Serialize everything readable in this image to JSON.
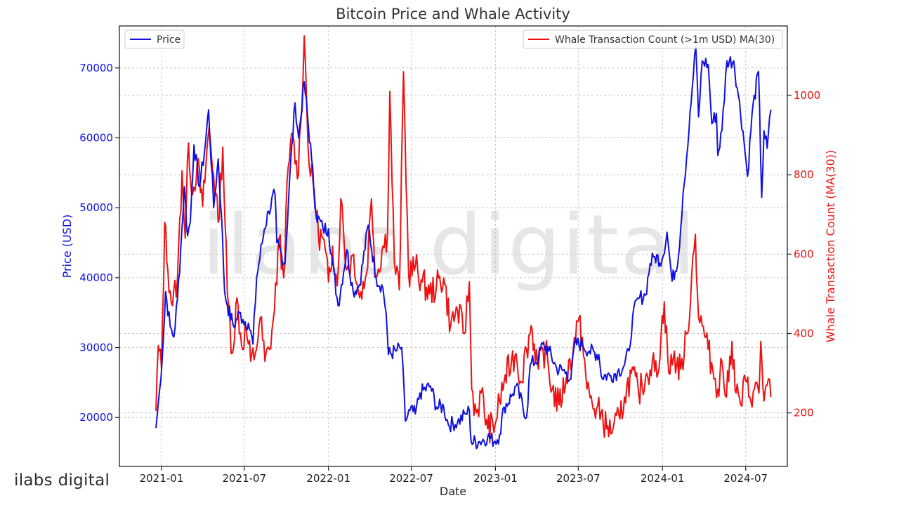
{
  "chart_data": {
    "type": "line",
    "title": "Bitcoin Price and Whale Activity",
    "xlabel": "Date",
    "ylabel_left": "Price (USD)",
    "ylabel_right": "Whale Transaction Count (MA(30))",
    "x_ticks": [
      "2021-01",
      "2021-07",
      "2022-01",
      "2022-07",
      "2023-01",
      "2023-07",
      "2024-01",
      "2024-07"
    ],
    "y_left_ticks": [
      20000,
      30000,
      40000,
      50000,
      60000,
      70000
    ],
    "y_right_ticks": [
      200,
      400,
      600,
      800,
      1000
    ],
    "xlim": [
      "2020-10-01",
      "2024-09-30"
    ],
    "ylim_left": [
      13000,
      76000
    ],
    "ylim_right": [
      65,
      1175
    ],
    "grid": true,
    "series": [
      {
        "name": "Price",
        "axis": "left",
        "color": "#1010e0",
        "points": [
          [
            "2020-12-20",
            18500
          ],
          [
            "2020-12-28",
            24000
          ],
          [
            "2021-01-05",
            31000
          ],
          [
            "2021-01-10",
            38000
          ],
          [
            "2021-01-20",
            33000
          ],
          [
            "2021-01-28",
            31500
          ],
          [
            "2021-02-05",
            37000
          ],
          [
            "2021-02-12",
            44000
          ],
          [
            "2021-02-20",
            53000
          ],
          [
            "2021-02-27",
            46000
          ],
          [
            "2021-03-05",
            48000
          ],
          [
            "2021-03-13",
            59000
          ],
          [
            "2021-03-25",
            53000
          ],
          [
            "2021-04-05",
            58000
          ],
          [
            "2021-04-14",
            64000
          ],
          [
            "2021-04-25",
            50000
          ],
          [
            "2021-05-05",
            57000
          ],
          [
            "2021-05-12",
            49000
          ],
          [
            "2021-05-19",
            38000
          ],
          [
            "2021-05-25",
            36000
          ],
          [
            "2021-06-08",
            33000
          ],
          [
            "2021-06-20",
            35000
          ],
          [
            "2021-06-28",
            34000
          ],
          [
            "2021-07-10",
            33500
          ],
          [
            "2021-07-20",
            30500
          ],
          [
            "2021-07-28",
            40000
          ],
          [
            "2021-08-14",
            47000
          ],
          [
            "2021-08-23",
            49500
          ],
          [
            "2021-09-06",
            52000
          ],
          [
            "2021-09-10",
            45000
          ],
          [
            "2021-09-28",
            42000
          ],
          [
            "2021-10-08",
            54000
          ],
          [
            "2021-10-20",
            65000
          ],
          [
            "2021-10-28",
            60000
          ],
          [
            "2021-11-09",
            68000
          ],
          [
            "2021-11-25",
            57000
          ],
          [
            "2021-12-05",
            49000
          ],
          [
            "2021-12-20",
            47000
          ],
          [
            "2022-01-01",
            47000
          ],
          [
            "2022-01-10",
            42000
          ],
          [
            "2022-01-22",
            36000
          ],
          [
            "2022-02-10",
            44000
          ],
          [
            "2022-02-24",
            38000
          ],
          [
            "2022-03-10",
            39000
          ],
          [
            "2022-03-29",
            47500
          ],
          [
            "2022-04-15",
            40000
          ],
          [
            "2022-04-30",
            38500
          ],
          [
            "2022-05-07",
            35000
          ],
          [
            "2022-05-12",
            29000
          ],
          [
            "2022-05-28",
            29500
          ],
          [
            "2022-06-10",
            30000
          ],
          [
            "2022-06-18",
            19500
          ],
          [
            "2022-06-28",
            21000
          ],
          [
            "2022-07-10",
            20500
          ],
          [
            "2022-07-20",
            23500
          ],
          [
            "2022-08-12",
            24500
          ],
          [
            "2022-08-25",
            21500
          ],
          [
            "2022-09-10",
            21500
          ],
          [
            "2022-09-20",
            19000
          ],
          [
            "2022-10-10",
            19300
          ],
          [
            "2022-10-28",
            20500
          ],
          [
            "2022-11-05",
            21000
          ],
          [
            "2022-11-09",
            16500
          ],
          [
            "2022-11-25",
            16500
          ],
          [
            "2022-12-15",
            17200
          ],
          [
            "2022-12-31",
            16600
          ],
          [
            "2023-01-10",
            17500
          ],
          [
            "2023-01-20",
            21500
          ],
          [
            "2023-02-05",
            23000
          ],
          [
            "2023-02-15",
            24500
          ],
          [
            "2023-03-10",
            20000
          ],
          [
            "2023-03-18",
            27500
          ],
          [
            "2023-04-05",
            28500
          ],
          [
            "2023-04-14",
            30500
          ],
          [
            "2023-04-28",
            29500
          ],
          [
            "2023-05-15",
            27000
          ],
          [
            "2023-06-05",
            26500
          ],
          [
            "2023-06-15",
            25500
          ],
          [
            "2023-06-23",
            30500
          ],
          [
            "2023-07-10",
            30500
          ],
          [
            "2023-07-25",
            29500
          ],
          [
            "2023-08-15",
            29000
          ],
          [
            "2023-08-20",
            26000
          ],
          [
            "2023-09-10",
            26000
          ],
          [
            "2023-09-25",
            26500
          ],
          [
            "2023-10-10",
            27500
          ],
          [
            "2023-10-20",
            29500
          ],
          [
            "2023-10-28",
            34500
          ],
          [
            "2023-11-10",
            37000
          ],
          [
            "2023-11-25",
            37500
          ],
          [
            "2023-12-05",
            42000
          ],
          [
            "2023-12-15",
            43000
          ],
          [
            "2023-12-31",
            42500
          ],
          [
            "2024-01-11",
            46500
          ],
          [
            "2024-01-22",
            39500
          ],
          [
            "2024-02-05",
            43000
          ],
          [
            "2024-02-15",
            52000
          ],
          [
            "2024-02-28",
            61000
          ],
          [
            "2024-03-06",
            67000
          ],
          [
            "2024-03-14",
            73000
          ],
          [
            "2024-03-20",
            63000
          ],
          [
            "2024-03-28",
            71000
          ],
          [
            "2024-04-10",
            70500
          ],
          [
            "2024-04-18",
            62000
          ],
          [
            "2024-04-28",
            63500
          ],
          [
            "2024-05-01",
            57500
          ],
          [
            "2024-05-10",
            61000
          ],
          [
            "2024-05-21",
            71000
          ],
          [
            "2024-06-05",
            71000
          ],
          [
            "2024-06-15",
            66000
          ],
          [
            "2024-06-25",
            61000
          ],
          [
            "2024-07-05",
            54500
          ],
          [
            "2024-07-15",
            63500
          ],
          [
            "2024-07-29",
            69500
          ],
          [
            "2024-08-05",
            51500
          ],
          [
            "2024-08-10",
            61000
          ],
          [
            "2024-08-17",
            58500
          ],
          [
            "2024-08-25",
            64000
          ]
        ]
      },
      {
        "name": "Whale Transaction Count (>1m USD) MA(30)",
        "axis": "right",
        "color": "#ee1111",
        "points": [
          [
            "2020-12-20",
            205
          ],
          [
            "2020-12-25",
            370
          ],
          [
            "2021-01-01",
            310
          ],
          [
            "2021-01-08",
            680
          ],
          [
            "2021-01-15",
            560
          ],
          [
            "2021-01-25",
            470
          ],
          [
            "2021-02-05",
            540
          ],
          [
            "2021-02-15",
            810
          ],
          [
            "2021-02-22",
            640
          ],
          [
            "2021-03-01",
            880
          ],
          [
            "2021-03-10",
            750
          ],
          [
            "2021-03-20",
            830
          ],
          [
            "2021-04-01",
            720
          ],
          [
            "2021-04-15",
            920
          ],
          [
            "2021-04-25",
            800
          ],
          [
            "2021-05-05",
            680
          ],
          [
            "2021-05-15",
            870
          ],
          [
            "2021-05-25",
            500
          ],
          [
            "2021-06-05",
            350
          ],
          [
            "2021-06-15",
            490
          ],
          [
            "2021-06-25",
            370
          ],
          [
            "2021-07-05",
            410
          ],
          [
            "2021-07-15",
            330
          ],
          [
            "2021-07-25",
            350
          ],
          [
            "2021-08-05",
            440
          ],
          [
            "2021-08-15",
            330
          ],
          [
            "2021-08-25",
            360
          ],
          [
            "2021-09-05",
            460
          ],
          [
            "2021-09-15",
            640
          ],
          [
            "2021-09-25",
            540
          ],
          [
            "2021-10-05",
            820
          ],
          [
            "2021-10-15",
            900
          ],
          [
            "2021-10-25",
            790
          ],
          [
            "2021-11-01",
            920
          ],
          [
            "2021-11-09",
            1150
          ],
          [
            "2021-11-20",
            820
          ],
          [
            "2021-12-01",
            760
          ],
          [
            "2021-12-10",
            650
          ],
          [
            "2021-12-20",
            640
          ],
          [
            "2022-01-01",
            530
          ],
          [
            "2022-01-10",
            620
          ],
          [
            "2022-01-20",
            520
          ],
          [
            "2022-01-28",
            740
          ],
          [
            "2022-02-10",
            560
          ],
          [
            "2022-02-25",
            600
          ],
          [
            "2022-03-10",
            490
          ],
          [
            "2022-03-25",
            550
          ],
          [
            "2022-04-05",
            740
          ],
          [
            "2022-04-15",
            540
          ],
          [
            "2022-04-28",
            610
          ],
          [
            "2022-05-10",
            650
          ],
          [
            "2022-05-15",
            1010
          ],
          [
            "2022-05-25",
            580
          ],
          [
            "2022-06-05",
            510
          ],
          [
            "2022-06-14",
            1060
          ],
          [
            "2022-06-25",
            550
          ],
          [
            "2022-07-10",
            570
          ],
          [
            "2022-07-25",
            530
          ],
          [
            "2022-08-10",
            500
          ],
          [
            "2022-08-25",
            520
          ],
          [
            "2022-09-10",
            540
          ],
          [
            "2022-09-25",
            420
          ],
          [
            "2022-10-10",
            460
          ],
          [
            "2022-10-25",
            400
          ],
          [
            "2022-11-05",
            530
          ],
          [
            "2022-11-10",
            260
          ],
          [
            "2022-11-20",
            200
          ],
          [
            "2022-12-01",
            250
          ],
          [
            "2022-12-15",
            160
          ],
          [
            "2022-12-31",
            170
          ],
          [
            "2023-01-10",
            230
          ],
          [
            "2023-01-20",
            280
          ],
          [
            "2023-02-05",
            330
          ],
          [
            "2023-02-15",
            350
          ],
          [
            "2023-02-25",
            280
          ],
          [
            "2023-03-10",
            360
          ],
          [
            "2023-03-20",
            420
          ],
          [
            "2023-04-05",
            310
          ],
          [
            "2023-04-20",
            360
          ],
          [
            "2023-05-05",
            260
          ],
          [
            "2023-05-20",
            220
          ],
          [
            "2023-06-05",
            290
          ],
          [
            "2023-06-20",
            360
          ],
          [
            "2023-06-30",
            430
          ],
          [
            "2023-07-10",
            390
          ],
          [
            "2023-07-20",
            260
          ],
          [
            "2023-08-05",
            210
          ],
          [
            "2023-08-20",
            200
          ],
          [
            "2023-09-01",
            160
          ],
          [
            "2023-09-15",
            160
          ],
          [
            "2023-09-30",
            185
          ],
          [
            "2023-10-10",
            240
          ],
          [
            "2023-10-25",
            300
          ],
          [
            "2023-11-10",
            250
          ],
          [
            "2023-11-25",
            290
          ],
          [
            "2023-12-10",
            330
          ],
          [
            "2023-12-20",
            290
          ],
          [
            "2024-01-05",
            480
          ],
          [
            "2024-01-15",
            300
          ],
          [
            "2024-01-25",
            340
          ],
          [
            "2024-02-10",
            310
          ],
          [
            "2024-02-25",
            400
          ],
          [
            "2024-03-05",
            550
          ],
          [
            "2024-03-13",
            650
          ],
          [
            "2024-03-20",
            440
          ],
          [
            "2024-03-28",
            420
          ],
          [
            "2024-04-10",
            360
          ],
          [
            "2024-04-20",
            310
          ],
          [
            "2024-05-01",
            260
          ],
          [
            "2024-05-10",
            330
          ],
          [
            "2024-05-20",
            240
          ],
          [
            "2024-06-01",
            380
          ],
          [
            "2024-06-10",
            250
          ],
          [
            "2024-06-20",
            220
          ],
          [
            "2024-07-01",
            280
          ],
          [
            "2024-07-10",
            240
          ],
          [
            "2024-07-20",
            260
          ],
          [
            "2024-07-30",
            250
          ],
          [
            "2024-08-03",
            380
          ],
          [
            "2024-08-10",
            230
          ],
          [
            "2024-08-17",
            270
          ],
          [
            "2024-08-25",
            240
          ]
        ]
      }
    ]
  },
  "watermark": "ilabs digital",
  "brand": "ilabs digital",
  "colors": {
    "price": "#1010e0",
    "whale": "#ee1111",
    "axis": "#222222"
  }
}
